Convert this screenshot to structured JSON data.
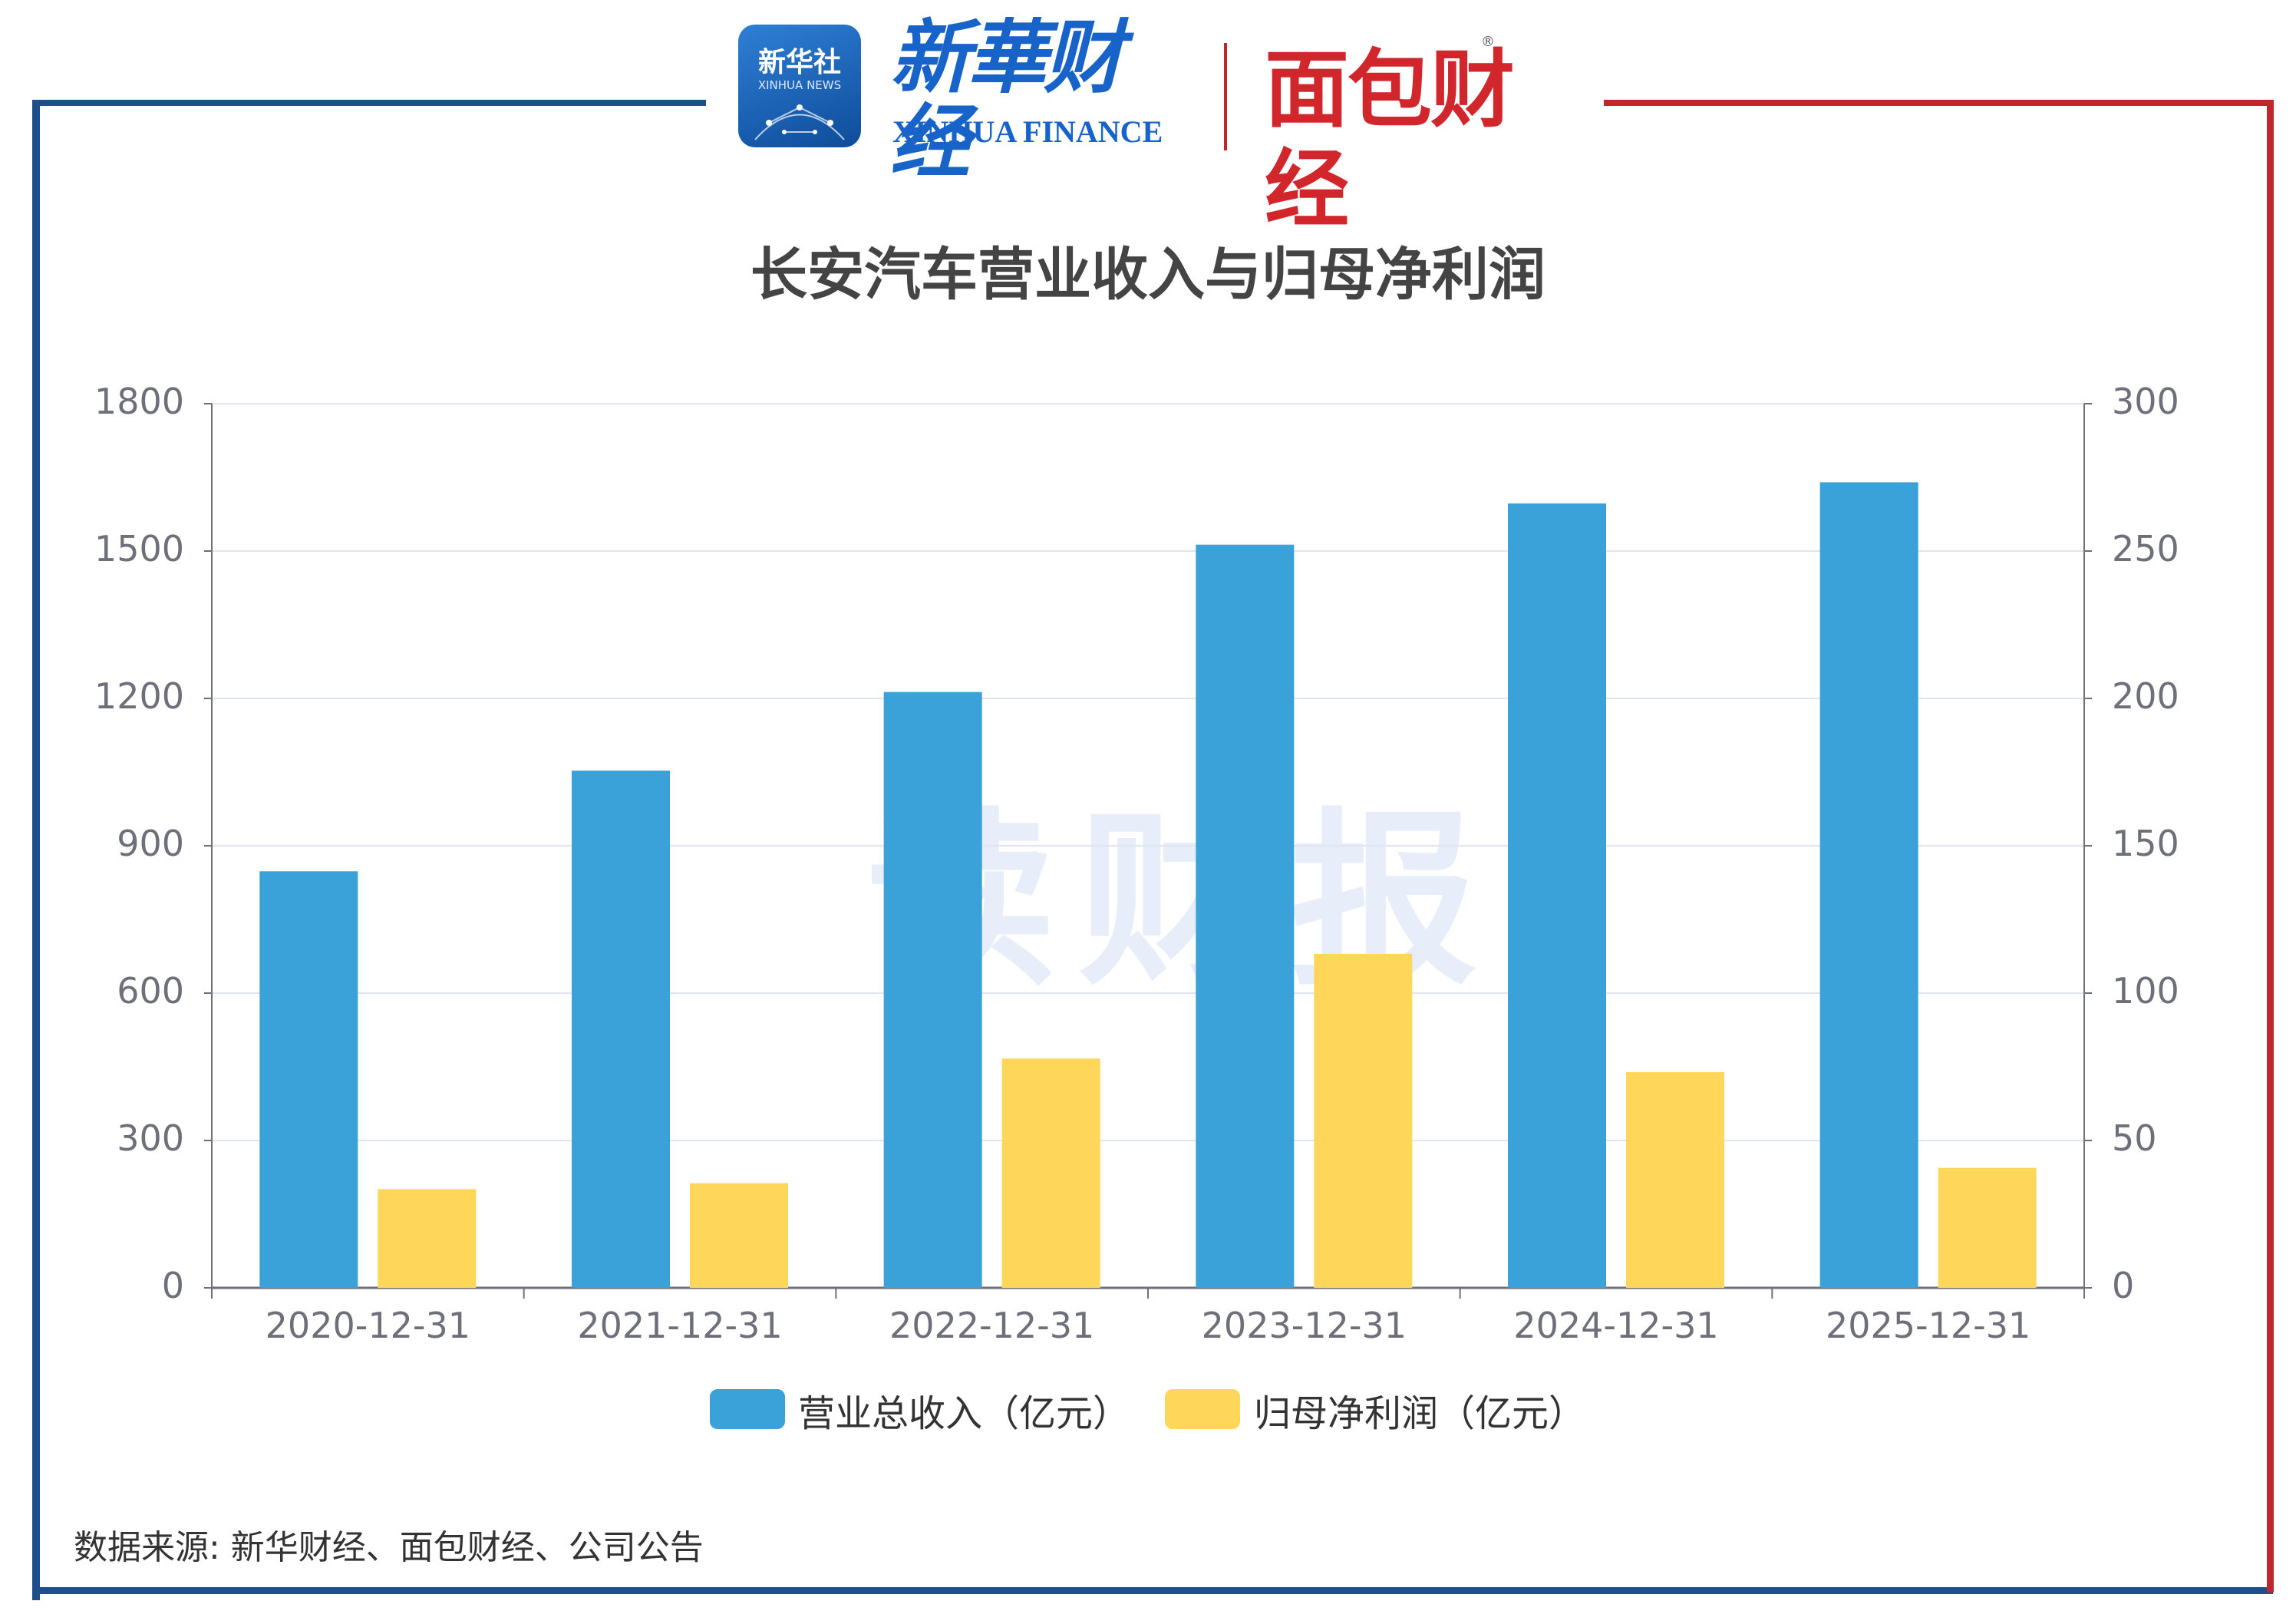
{
  "logos": {
    "xinhua_box_text": "新华社",
    "xinhua_box_sub": "XINHUA NEWS",
    "xinhua_finance_cn": "新華财经",
    "xinhua_finance_en": "XINHUA FINANCE",
    "mianbao": "面包财经",
    "registered_mark": "®"
  },
  "watermark": "读财报",
  "source": "数据来源: 新华财经、面包财经、公司公告",
  "colors": {
    "revenue": "#3aa1d9",
    "profit": "#fed75a",
    "frame_blue": "#1f4e8c",
    "frame_red": "#c0272d",
    "grid": "#e0e6f1",
    "axis": "#6e7079"
  },
  "chart_data": {
    "type": "bar",
    "title": "长安汽车营业收入与归母净利润",
    "categories": [
      "2020-12-31",
      "2021-12-31",
      "2022-12-31",
      "2023-12-31",
      "2024-12-31",
      "2025-12-31"
    ],
    "series": [
      {
        "name": "营业总收入（亿元）",
        "axis": "left",
        "values": [
          848,
          1053,
          1213,
          1513,
          1597,
          1640
        ]
      },
      {
        "name": "归母净利润（亿元）",
        "axis": "right",
        "values": [
          33.5,
          35.5,
          77.8,
          113.3,
          73.2,
          40.7
        ]
      }
    ],
    "y_left": {
      "min": 0,
      "max": 1800,
      "ticks": [
        "0",
        "300",
        "600",
        "900",
        "1200",
        "1500",
        "1800"
      ]
    },
    "y_right": {
      "min": 0,
      "max": 300,
      "ticks": [
        "0",
        "50",
        "100",
        "150",
        "200",
        "250",
        "300"
      ]
    },
    "grid": true,
    "legend_position": "bottom"
  }
}
